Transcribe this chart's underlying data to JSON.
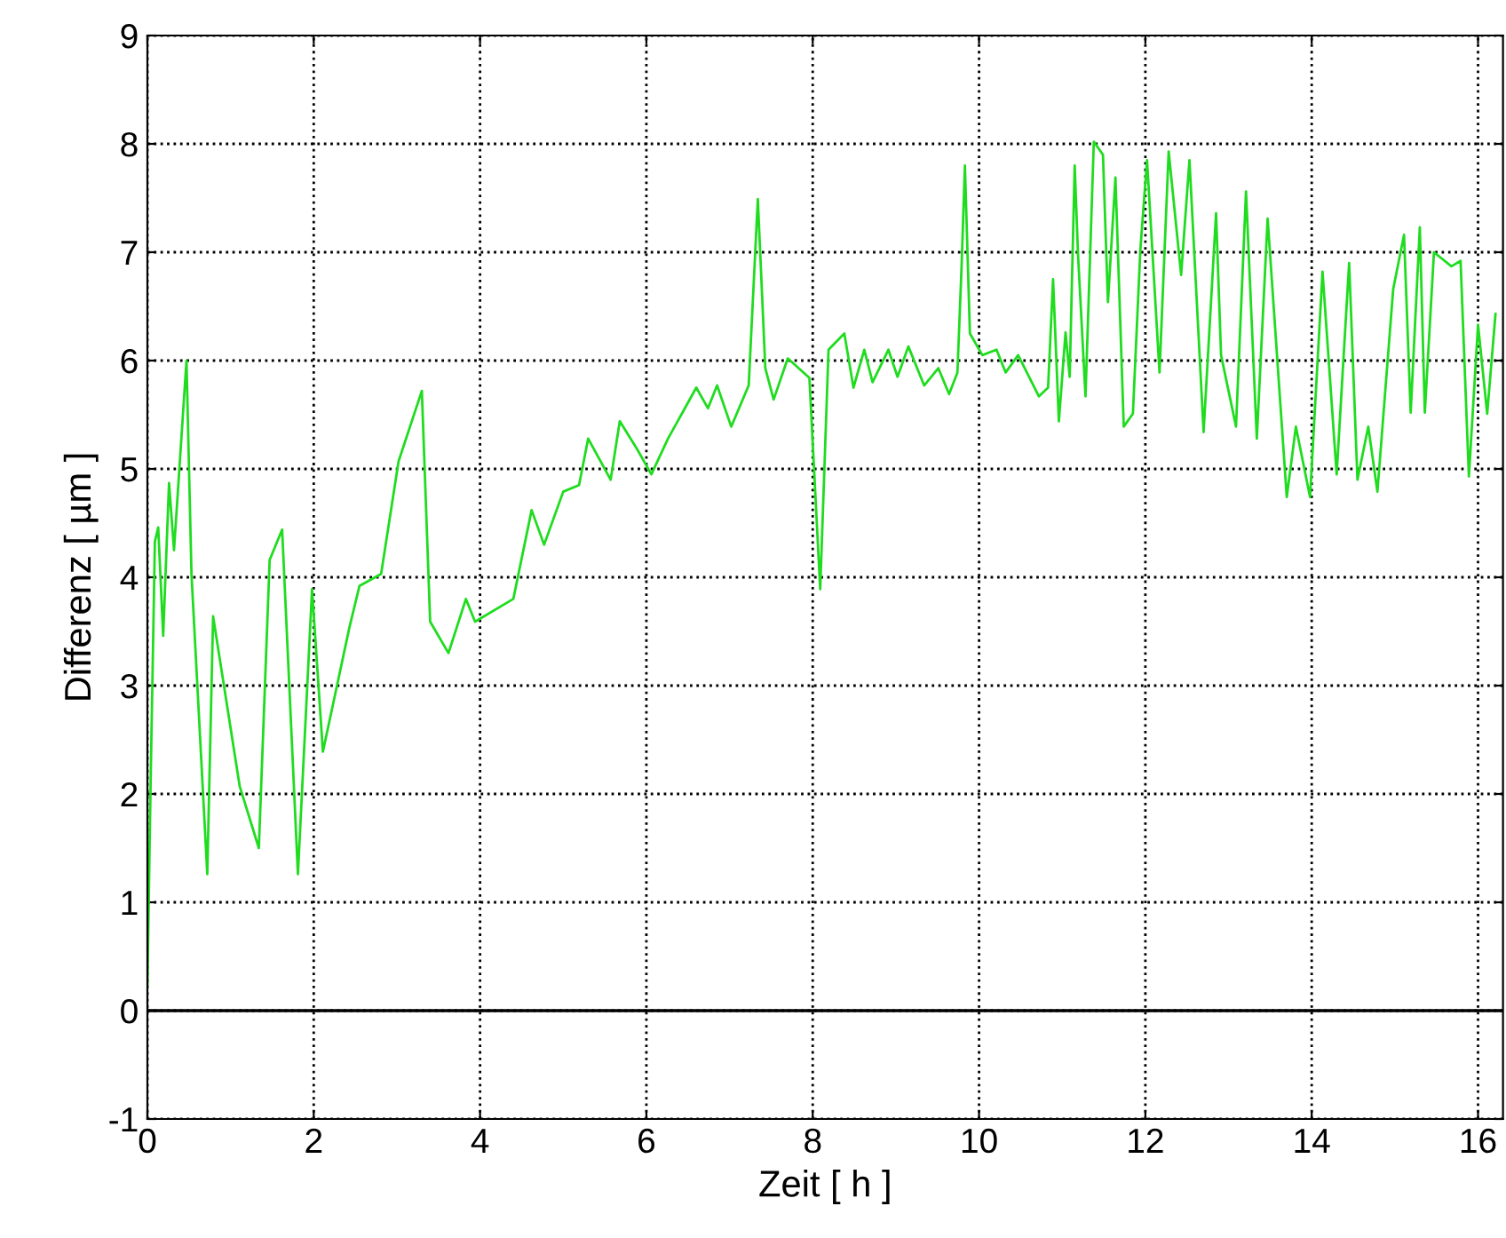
{
  "chart_data": {
    "type": "line",
    "xlabel": "Zeit [ h ]",
    "ylabel": "Differenz [ µm ]",
    "xlim": [
      0,
      16.3
    ],
    "xticks": [
      0,
      2,
      4,
      6,
      8,
      10,
      12,
      14,
      16
    ],
    "ylim": [
      -1,
      9
    ],
    "yticks": [
      -1,
      0,
      1,
      2,
      3,
      4,
      5,
      6,
      7,
      8,
      9
    ],
    "grid": true,
    "line_style": "solid",
    "ref_lines": [
      {
        "axis": "y",
        "value": 0,
        "color": "#000000",
        "line_style": "solid"
      }
    ],
    "series": [
      {
        "color": "#1fdc1f",
        "x": [
          0.0,
          0.04,
          0.09,
          0.13,
          0.19,
          0.26,
          0.32,
          0.47,
          0.53,
          0.72,
          0.79,
          1.11,
          1.34,
          1.47,
          1.62,
          1.81,
          1.98,
          2.11,
          2.43,
          2.55,
          2.81,
          3.02,
          3.3,
          3.4,
          3.62,
          3.83,
          3.94,
          4.4,
          4.62,
          4.77,
          5.0,
          5.19,
          5.3,
          5.57,
          5.68,
          5.89,
          6.06,
          6.26,
          6.6,
          6.74,
          6.85,
          7.02,
          7.23,
          7.34,
          7.43,
          7.53,
          7.7,
          7.96,
          8.09,
          8.19,
          8.38,
          8.49,
          8.62,
          8.72,
          8.91,
          9.02,
          9.15,
          9.34,
          9.51,
          9.64,
          9.74,
          9.79,
          9.83,
          9.89,
          10.04,
          10.21,
          10.32,
          10.47,
          10.72,
          10.83,
          10.89,
          10.96,
          11.04,
          11.09,
          11.15,
          11.19,
          11.28,
          11.38,
          11.49,
          11.55,
          11.64,
          11.74,
          11.85,
          11.94,
          12.02,
          12.17,
          12.28,
          12.43,
          12.53,
          12.7,
          12.85,
          12.91,
          13.09,
          13.21,
          13.34,
          13.47,
          13.7,
          13.81,
          13.98,
          14.13,
          14.3,
          14.45,
          14.55,
          14.68,
          14.79,
          14.98,
          15.11,
          15.19,
          15.3,
          15.36,
          15.47,
          15.68,
          15.79,
          15.89,
          16.0,
          16.11,
          16.21
        ],
        "values": [
          0.23,
          2.16,
          4.33,
          4.46,
          3.46,
          4.87,
          4.25,
          6.0,
          4.03,
          1.26,
          3.64,
          2.07,
          1.5,
          4.16,
          4.44,
          1.26,
          3.89,
          2.39,
          3.54,
          3.92,
          4.03,
          5.07,
          5.72,
          3.59,
          3.3,
          3.8,
          3.59,
          3.8,
          4.62,
          4.3,
          4.79,
          4.85,
          5.28,
          4.9,
          5.44,
          5.18,
          4.95,
          5.28,
          5.75,
          5.56,
          5.77,
          5.39,
          5.77,
          7.49,
          5.93,
          5.64,
          6.02,
          5.84,
          3.89,
          6.1,
          6.25,
          5.75,
          6.1,
          5.8,
          6.1,
          5.85,
          6.13,
          5.77,
          5.93,
          5.69,
          5.89,
          6.87,
          7.8,
          6.25,
          6.05,
          6.1,
          5.89,
          6.05,
          5.67,
          5.75,
          6.75,
          5.44,
          6.26,
          5.85,
          7.8,
          6.98,
          5.67,
          8.02,
          7.9,
          6.54,
          7.69,
          5.39,
          5.51,
          7.03,
          7.85,
          5.89,
          7.93,
          6.79,
          7.85,
          5.34,
          7.36,
          6.05,
          5.39,
          7.56,
          5.28,
          7.31,
          4.74,
          5.39,
          4.74,
          6.82,
          4.95,
          6.9,
          4.9,
          5.39,
          4.79,
          6.66,
          7.16,
          5.52,
          7.23,
          5.52,
          7.0,
          6.87,
          6.92,
          4.93,
          6.33,
          5.51,
          6.43
        ]
      }
    ]
  }
}
